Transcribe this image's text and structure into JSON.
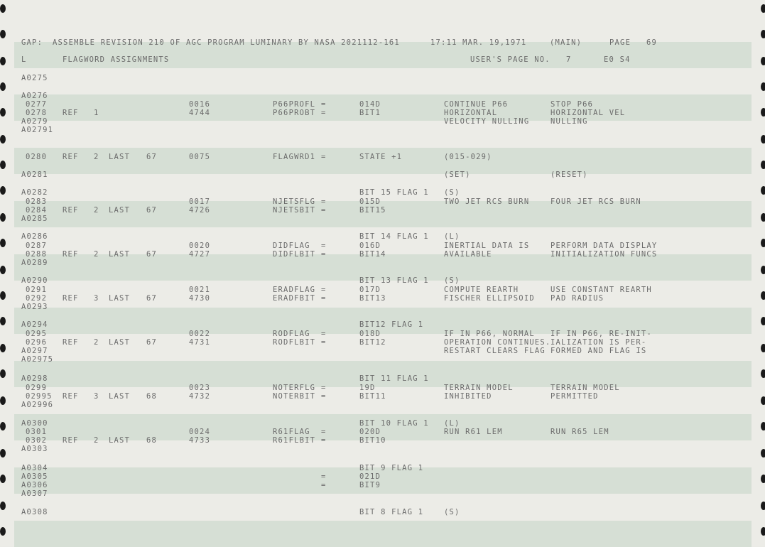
{
  "header": {
    "gap": "GAP:",
    "title": "ASSEMBLE REVISION 210 OF AGC PROGRAM LUMINARY BY NASA 2021112-161",
    "time": "17:11 MAR. 19,1971",
    "mode": "(MAIN)",
    "page_label": "PAGE",
    "page_no": "69"
  },
  "subheader": {
    "col_l": "L",
    "section": "FLAGWORD ASSIGNMENTS",
    "users_page_label": "USER'S PAGE NO.",
    "users_page_no": "7",
    "eo": "E0 S4"
  },
  "listing": [
    {
      "loc": "A0275",
      "ref": "",
      "cnt": "",
      "last": "",
      "lp": "",
      "addr": "",
      "sym": "",
      "eq": "",
      "val": "",
      "c1": "",
      "c2": ""
    },
    {
      "loc": "A0276",
      "ref": "",
      "cnt": "",
      "last": "",
      "lp": "",
      "addr": "",
      "sym": "",
      "eq": "",
      "val": "",
      "c1": "",
      "c2": ""
    },
    {
      "loc": "0277",
      "ref": "",
      "cnt": "",
      "last": "",
      "lp": "",
      "addr": "0016",
      "sym": "P66PROFL",
      "eq": "=",
      "val": "014D",
      "c1": "CONTINUE P66",
      "c2": "STOP P66"
    },
    {
      "loc": "0278",
      "ref": "REF",
      "cnt": "1",
      "last": "",
      "lp": "",
      "addr": "4744",
      "sym": "P66PROBT",
      "eq": "=",
      "val": "BIT1",
      "c1": "HORIZONTAL",
      "c2": "HORIZONTAL VEL"
    },
    {
      "loc": "A0279",
      "ref": "",
      "cnt": "",
      "last": "",
      "lp": "",
      "addr": "",
      "sym": "",
      "eq": "",
      "val": "",
      "c1": "VELOCITY NULLING",
      "c2": "NULLING"
    },
    {
      "loc": "A02791",
      "ref": "",
      "cnt": "",
      "last": "",
      "lp": "",
      "addr": "",
      "sym": "",
      "eq": "",
      "val": "",
      "c1": "",
      "c2": ""
    },
    {
      "loc": "0280",
      "ref": "REF",
      "cnt": "2",
      "last": "LAST",
      "lp": "67",
      "addr": "0075",
      "sym": "FLAGWRD1",
      "eq": "=",
      "val": "STATE +1",
      "c1": "(015-029)",
      "c2": ""
    },
    {
      "loc": "A0281",
      "ref": "",
      "cnt": "",
      "last": "",
      "lp": "",
      "addr": "",
      "sym": "",
      "eq": "",
      "val": "",
      "c1": "(SET)",
      "c2": "(RESET)"
    },
    {
      "loc": "A0282",
      "ref": "",
      "cnt": "",
      "last": "",
      "lp": "",
      "addr": "",
      "sym": "",
      "eq": "",
      "val": "BIT 15 FLAG 1",
      "c1": "(S)",
      "c2": ""
    },
    {
      "loc": "0283",
      "ref": "",
      "cnt": "",
      "last": "",
      "lp": "",
      "addr": "0017",
      "sym": "NJETSFLG",
      "eq": "=",
      "val": "015D",
      "c1": "TWO JET RCS BURN",
      "c2": "FOUR JET RCS BURN"
    },
    {
      "loc": "0284",
      "ref": "REF",
      "cnt": "2",
      "last": "LAST",
      "lp": "67",
      "addr": "4726",
      "sym": "NJETSBIT",
      "eq": "=",
      "val": "BIT15",
      "c1": "",
      "c2": ""
    },
    {
      "loc": "A0285",
      "ref": "",
      "cnt": "",
      "last": "",
      "lp": "",
      "addr": "",
      "sym": "",
      "eq": "",
      "val": "",
      "c1": "",
      "c2": ""
    },
    {
      "loc": "A0286",
      "ref": "",
      "cnt": "",
      "last": "",
      "lp": "",
      "addr": "",
      "sym": "",
      "eq": "",
      "val": "BIT 14 FLAG 1",
      "c1": "(L)",
      "c2": ""
    },
    {
      "loc": "0287",
      "ref": "",
      "cnt": "",
      "last": "",
      "lp": "",
      "addr": "0020",
      "sym": "DIDFLAG",
      "eq": "=",
      "val": "016D",
      "c1": "INERTIAL DATA IS",
      "c2": "PERFORM DATA DISPLAY"
    },
    {
      "loc": "0288",
      "ref": "REF",
      "cnt": "2",
      "last": "LAST",
      "lp": "67",
      "addr": "4727",
      "sym": "DIDFLBIT",
      "eq": "=",
      "val": "BIT14",
      "c1": "AVAILABLE",
      "c2": "INITIALIZATION FUNCS"
    },
    {
      "loc": "A0289",
      "ref": "",
      "cnt": "",
      "last": "",
      "lp": "",
      "addr": "",
      "sym": "",
      "eq": "",
      "val": "",
      "c1": "",
      "c2": ""
    },
    {
      "loc": "A0290",
      "ref": "",
      "cnt": "",
      "last": "",
      "lp": "",
      "addr": "",
      "sym": "",
      "eq": "",
      "val": "BIT 13 FLAG 1",
      "c1": "(S)",
      "c2": ""
    },
    {
      "loc": "0291",
      "ref": "",
      "cnt": "",
      "last": "",
      "lp": "",
      "addr": "0021",
      "sym": "ERADFLAG",
      "eq": "=",
      "val": "017D",
      "c1": "COMPUTE REARTH",
      "c2": "USE CONSTANT REARTH"
    },
    {
      "loc": "0292",
      "ref": "REF",
      "cnt": "3",
      "last": "LAST",
      "lp": "67",
      "addr": "4730",
      "sym": "ERADFBIT",
      "eq": "=",
      "val": "BIT13",
      "c1": "FISCHER ELLIPSOID",
      "c2": "PAD RADIUS"
    },
    {
      "loc": "A0293",
      "ref": "",
      "cnt": "",
      "last": "",
      "lp": "",
      "addr": "",
      "sym": "",
      "eq": "",
      "val": "",
      "c1": "",
      "c2": ""
    },
    {
      "loc": "A0294",
      "ref": "",
      "cnt": "",
      "last": "",
      "lp": "",
      "addr": "",
      "sym": "",
      "eq": "",
      "val": "BIT12 FLAG 1",
      "c1": "",
      "c2": ""
    },
    {
      "loc": "0295",
      "ref": "",
      "cnt": "",
      "last": "",
      "lp": "",
      "addr": "0022",
      "sym": "RODFLAG",
      "eq": "=",
      "val": "018D",
      "c1": "IF IN P66, NORMAL",
      "c2": "IF IN P66, RE-INIT-"
    },
    {
      "loc": "0296",
      "ref": "REF",
      "cnt": "2",
      "last": "LAST",
      "lp": "67",
      "addr": "4731",
      "sym": "RODFLBIT",
      "eq": "=",
      "val": "BIT12",
      "c1": "OPERATION CONTINUES.",
      "c2": "IALIZATION IS PER-"
    },
    {
      "loc": "A0297",
      "ref": "",
      "cnt": "",
      "last": "",
      "lp": "",
      "addr": "",
      "sym": "",
      "eq": "",
      "val": "",
      "c1": "RESTART CLEARS FLAG",
      "c2": "FORMED AND FLAG IS"
    },
    {
      "loc": "A02975",
      "ref": "",
      "cnt": "",
      "last": "",
      "lp": "",
      "addr": "",
      "sym": "",
      "eq": "",
      "val": "",
      "c1": "",
      "c2": ""
    },
    {
      "loc": "A0298",
      "ref": "",
      "cnt": "",
      "last": "",
      "lp": "",
      "addr": "",
      "sym": "",
      "eq": "",
      "val": "BIT 11 FLAG 1",
      "c1": "",
      "c2": ""
    },
    {
      "loc": "0299",
      "ref": "",
      "cnt": "",
      "last": "",
      "lp": "",
      "addr": "0023",
      "sym": "NOTERFLG",
      "eq": "=",
      "val": "19D",
      "c1": "TERRAIN MODEL",
      "c2": "TERRAIN MODEL"
    },
    {
      "loc": "02995",
      "ref": "REF",
      "cnt": "3",
      "last": "LAST",
      "lp": "68",
      "addr": "4732",
      "sym": "NOTERBIT",
      "eq": "=",
      "val": "BIT11",
      "c1": "INHIBITED",
      "c2": "PERMITTED"
    },
    {
      "loc": "A02996",
      "ref": "",
      "cnt": "",
      "last": "",
      "lp": "",
      "addr": "",
      "sym": "",
      "eq": "",
      "val": "",
      "c1": "",
      "c2": ""
    },
    {
      "loc": "A0300",
      "ref": "",
      "cnt": "",
      "last": "",
      "lp": "",
      "addr": "",
      "sym": "",
      "eq": "",
      "val": "BIT 10 FLAG 1",
      "c1": "(L)",
      "c2": ""
    },
    {
      "loc": "0301",
      "ref": "",
      "cnt": "",
      "last": "",
      "lp": "",
      "addr": "0024",
      "sym": "R61FLAG",
      "eq": "=",
      "val": "020D",
      "c1": "RUN R61 LEM",
      "c2": "RUN R65 LEM"
    },
    {
      "loc": "0302",
      "ref": "REF",
      "cnt": "2",
      "last": "LAST",
      "lp": "68",
      "addr": "4733",
      "sym": "R61FLBIT",
      "eq": "=",
      "val": "BIT10",
      "c1": "",
      "c2": ""
    },
    {
      "loc": "A0303",
      "ref": "",
      "cnt": "",
      "last": "",
      "lp": "",
      "addr": "",
      "sym": "",
      "eq": "",
      "val": "",
      "c1": "",
      "c2": ""
    },
    {
      "loc": "A0304",
      "ref": "",
      "cnt": "",
      "last": "",
      "lp": "",
      "addr": "",
      "sym": "",
      "eq": "",
      "val": "BIT 9 FLAG 1",
      "c1": "",
      "c2": ""
    },
    {
      "loc": "A0305",
      "ref": "",
      "cnt": "",
      "last": "",
      "lp": "",
      "addr": "",
      "sym": "",
      "eq": "=",
      "val": "021D",
      "c1": "",
      "c2": ""
    },
    {
      "loc": "A0306",
      "ref": "",
      "cnt": "",
      "last": "",
      "lp": "",
      "addr": "",
      "sym": "",
      "eq": "=",
      "val": "BIT9",
      "c1": "",
      "c2": ""
    },
    {
      "loc": "A0307",
      "ref": "",
      "cnt": "",
      "last": "",
      "lp": "",
      "addr": "",
      "sym": "",
      "eq": "",
      "val": "",
      "c1": "",
      "c2": ""
    },
    {
      "loc": "A0308",
      "ref": "",
      "cnt": "",
      "last": "",
      "lp": "",
      "addr": "",
      "sym": "",
      "eq": "",
      "val": "BIT 8 FLAG 1",
      "c1": "(S)",
      "c2": ""
    }
  ]
}
